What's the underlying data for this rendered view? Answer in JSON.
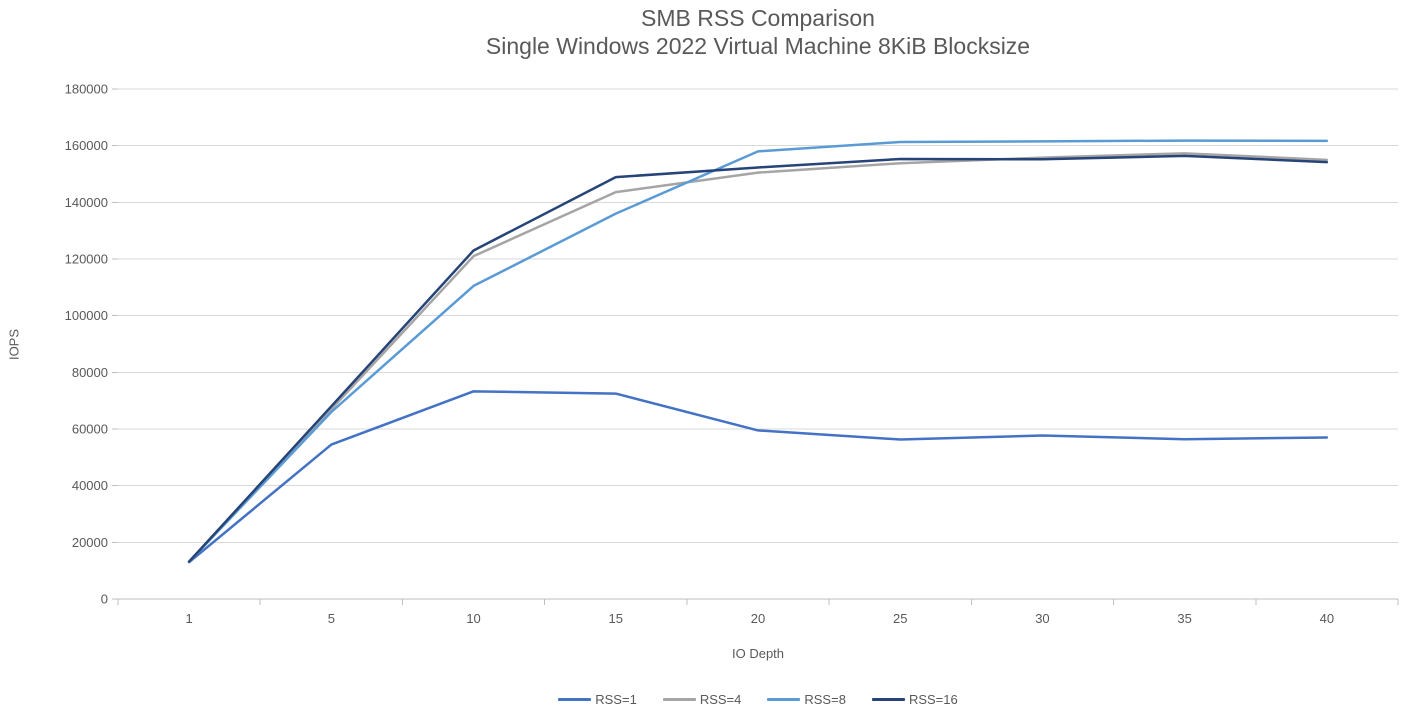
{
  "chart_data": {
    "type": "line",
    "title": "SMB RSS Comparison",
    "subtitle": "Single Windows 2022 Virtual Machine 8KiB Blocksize",
    "xlabel": "IO Depth",
    "ylabel": "IOPS",
    "x_axis_type": "categorical",
    "categories": [
      1,
      5,
      10,
      15,
      20,
      25,
      30,
      35,
      40
    ],
    "ylim": [
      0,
      180000
    ],
    "yticks": [
      0,
      20000,
      40000,
      60000,
      80000,
      100000,
      120000,
      140000,
      160000,
      180000
    ],
    "grid": "horizontal",
    "legend_position": "bottom",
    "series": [
      {
        "name": "RSS=1",
        "color": "#4472C4",
        "values": [
          13000,
          54500,
          73300,
          72500,
          59500,
          56300,
          57700,
          56400,
          57000
        ]
      },
      {
        "name": "RSS=4",
        "color": "#A5A5A5",
        "values": [
          13100,
          67000,
          121000,
          143600,
          150500,
          153800,
          155800,
          157300,
          155000
        ]
      },
      {
        "name": "RSS=8",
        "color": "#5B9BD5",
        "values": [
          13200,
          66000,
          110500,
          136000,
          158000,
          161300,
          161500,
          161800,
          161700
        ]
      },
      {
        "name": "RSS=16",
        "color": "#264478",
        "values": [
          13200,
          68000,
          123000,
          148900,
          152300,
          155300,
          155200,
          156400,
          154200
        ]
      }
    ],
    "colors": {
      "gridline": "#D9D9D9",
      "axis_line": "#BFBFBF",
      "text": "#595959"
    }
  }
}
